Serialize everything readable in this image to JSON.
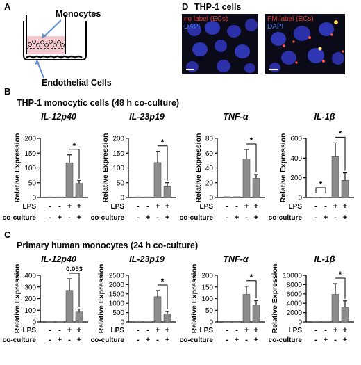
{
  "panel_A": {
    "letter": "A",
    "monocytes_label": "Monocytes",
    "endothelial_label": "Endothelial Cells"
  },
  "panel_D": {
    "letter": "D",
    "title": "THP-1 cells",
    "left_image": {
      "label_red": "no label (ECs)",
      "label_blue": "DAPI"
    },
    "right_image": {
      "label_red": "FM label (ECs)",
      "label_blue": "DAPI"
    }
  },
  "colors": {
    "bar": "#8c8c8c",
    "red_label": "#e23b2e",
    "blue_label": "#4a78d6",
    "micro_bg": "#0a0a18",
    "nucleus": "#2b2fa8"
  },
  "row_labels": {
    "lps": "LPS",
    "coculture": "co-culture"
  },
  "ylabel": "Relative Expression",
  "condition_table": {
    "lps": [
      "-",
      "-",
      "+",
      "+"
    ],
    "coculture": [
      "-",
      "+",
      "-",
      "+"
    ]
  },
  "sections": [
    {
      "letter": "B",
      "title": "THP-1 monocytic cells (48 h co-culture)"
    },
    {
      "letter": "C",
      "title": "Primary human monocytes (24 h co-culture)"
    }
  ],
  "chart_data": [
    {
      "type": "bar",
      "section": "B",
      "title": "IL-12p40",
      "categories": [
        "1",
        "2",
        "3",
        "4"
      ],
      "values": [
        2,
        2,
        117,
        48
      ],
      "errors": [
        1,
        1,
        27,
        9
      ],
      "ylim": [
        0,
        200
      ],
      "yticks": [
        0,
        50,
        100,
        150,
        200
      ],
      "annotations": [
        {
          "from": 2,
          "to": 3,
          "text": "*"
        }
      ]
    },
    {
      "type": "bar",
      "section": "B",
      "title": "IL-23p19",
      "categories": [
        "1",
        "2",
        "3",
        "4"
      ],
      "values": [
        2,
        2,
        118,
        37
      ],
      "errors": [
        1,
        1,
        38,
        13
      ],
      "ylim": [
        0,
        200
      ],
      "yticks": [
        0,
        50,
        100,
        150,
        200
      ],
      "annotations": [
        {
          "from": 2,
          "to": 3,
          "text": "*"
        }
      ]
    },
    {
      "type": "bar",
      "section": "B",
      "title": "TNF-α",
      "categories": [
        "1",
        "2",
        "3",
        "4"
      ],
      "values": [
        1,
        1,
        52,
        26
      ],
      "errors": [
        0.5,
        0.5,
        13,
        5
      ],
      "ylim": [
        0,
        80
      ],
      "yticks": [
        0,
        20,
        40,
        60,
        80
      ],
      "annotations": [
        {
          "from": 2,
          "to": 3,
          "text": "*"
        }
      ]
    },
    {
      "type": "bar",
      "section": "B",
      "title": "IL-1β",
      "categories": [
        "1",
        "2",
        "3",
        "4"
      ],
      "values": [
        2,
        2,
        415,
        175
      ],
      "errors": [
        1,
        1,
        140,
        75
      ],
      "ylim": [
        0,
        600
      ],
      "yticks": [
        0,
        200,
        400,
        600
      ],
      "annotations": [
        {
          "from": 2,
          "to": 3,
          "text": "*"
        },
        {
          "from": 0,
          "to": 1,
          "text": "*"
        }
      ]
    },
    {
      "type": "bar",
      "section": "C",
      "title": "IL-12p40",
      "categories": [
        "1",
        "2",
        "3",
        "4"
      ],
      "values": [
        2,
        2,
        270,
        85
      ],
      "errors": [
        1,
        1,
        100,
        25
      ],
      "ylim": [
        0,
        400
      ],
      "yticks": [
        0,
        100,
        200,
        300,
        400
      ],
      "annotations": [
        {
          "from": 2,
          "to": 3,
          "text": "0.053"
        }
      ]
    },
    {
      "type": "bar",
      "section": "C",
      "title": "IL-23p19",
      "categories": [
        "1",
        "2",
        "3",
        "4"
      ],
      "values": [
        5,
        5,
        1350,
        430
      ],
      "errors": [
        2,
        2,
        330,
        130
      ],
      "ylim": [
        0,
        2500
      ],
      "yticks": [
        0,
        500,
        1000,
        1500,
        2000,
        2500
      ],
      "annotations": [
        {
          "from": 2,
          "to": 3,
          "text": "*"
        }
      ]
    },
    {
      "type": "bar",
      "section": "C",
      "title": "TNF-α",
      "categories": [
        "1",
        "2",
        "3",
        "4"
      ],
      "values": [
        2,
        2,
        118,
        72
      ],
      "errors": [
        1,
        1,
        35,
        20
      ],
      "ylim": [
        0,
        200
      ],
      "yticks": [
        0,
        50,
        100,
        150,
        200
      ],
      "annotations": [
        {
          "from": 2,
          "to": 3,
          "text": "*"
        }
      ]
    },
    {
      "type": "bar",
      "section": "C",
      "title": "IL-1β",
      "categories": [
        "1",
        "2",
        "3",
        "4"
      ],
      "values": [
        10,
        10,
        5900,
        3200
      ],
      "errors": [
        5,
        5,
        2300,
        1300
      ],
      "ylim": [
        0,
        10000
      ],
      "yticks": [
        0,
        2000,
        4000,
        6000,
        8000,
        10000
      ],
      "annotations": [
        {
          "from": 2,
          "to": 3,
          "text": "*"
        }
      ]
    }
  ]
}
